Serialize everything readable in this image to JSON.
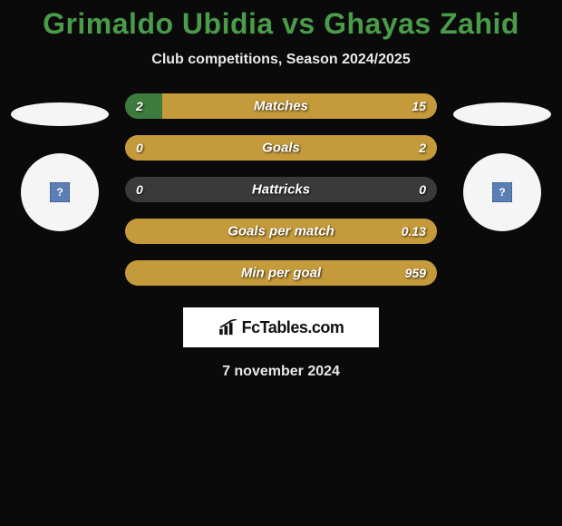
{
  "title": "Grimaldo Ubidia vs Ghayas Zahid",
  "subtitle": "Club competitions, Season 2024/2025",
  "date": "7 november 2024",
  "logo_text": "FcTables.com",
  "colors": {
    "title": "#4a9b4a",
    "left_fill": "#3d7a3d",
    "right_fill": "#c49a3a",
    "neutral_fill": "#3a3a3a",
    "background": "#0a0a0a",
    "text_light": "#e8e8e8"
  },
  "bars": [
    {
      "label": "Matches",
      "left_value": "2",
      "right_value": "15",
      "left_pct": 11.8,
      "right_pct": 88.2,
      "left_color": "#3d7a3d",
      "right_color": "#c49a3a"
    },
    {
      "label": "Goals",
      "left_value": "0",
      "right_value": "2",
      "left_pct": 0,
      "right_pct": 100,
      "left_color": "#3d7a3d",
      "right_color": "#c49a3a"
    },
    {
      "label": "Hattricks",
      "left_value": "0",
      "right_value": "0",
      "left_pct": 0,
      "right_pct": 0,
      "left_color": "#3a3a3a",
      "right_color": "#3a3a3a",
      "neutral": true
    },
    {
      "label": "Goals per match",
      "left_value": "",
      "right_value": "0.13",
      "left_pct": 0,
      "right_pct": 100,
      "left_color": "#3d7a3d",
      "right_color": "#c49a3a"
    },
    {
      "label": "Min per goal",
      "left_value": "",
      "right_value": "959",
      "left_pct": 0,
      "right_pct": 100,
      "left_color": "#3d7a3d",
      "right_color": "#c49a3a"
    }
  ]
}
